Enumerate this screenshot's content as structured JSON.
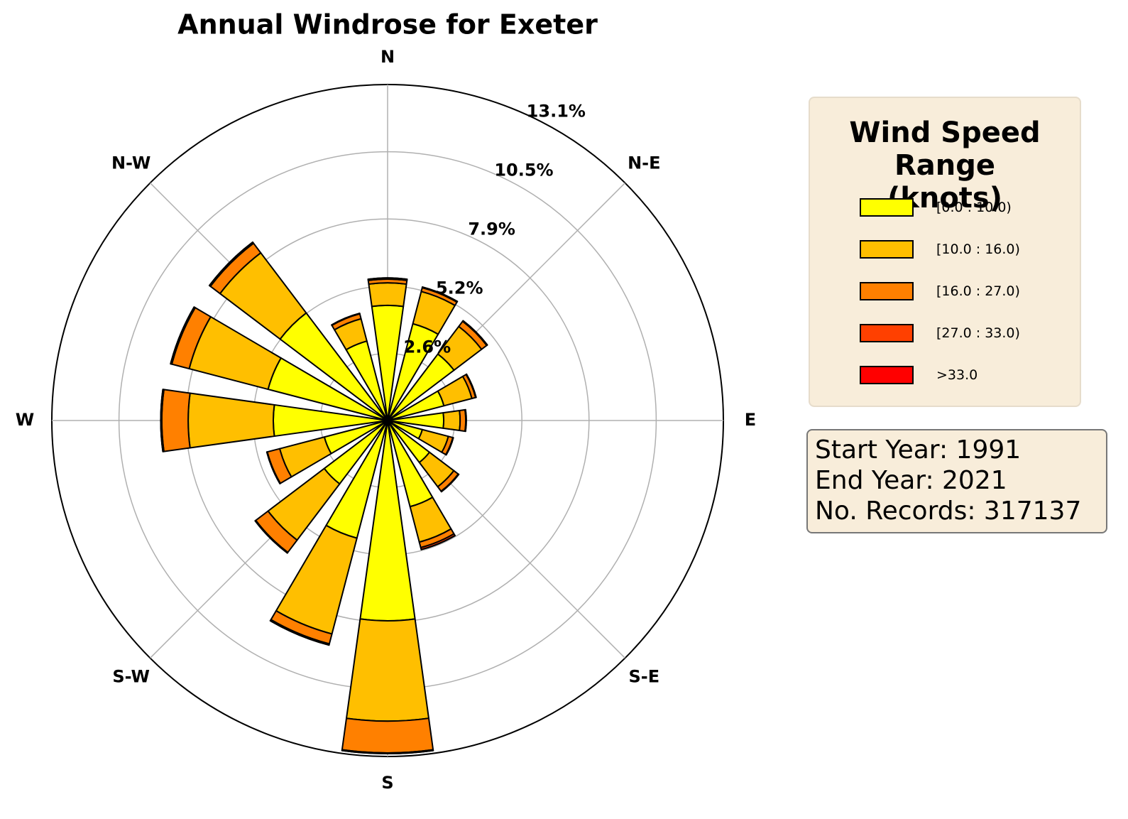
{
  "chart_data": {
    "type": "windrose",
    "title": "Annual Windrose for Exeter",
    "categories": [
      "N",
      null,
      "N-E",
      null,
      "E",
      null,
      "S-E",
      null,
      "S",
      null,
      "S-W",
      null,
      "W",
      null,
      "N-W",
      null
    ],
    "ylim": [
      0,
      13.1
    ],
    "yticks": [
      {
        "value": 2.62,
        "label": "2.6%"
      },
      {
        "value": 5.24,
        "label": "5.2%"
      },
      {
        "value": 7.86,
        "label": "7.9%"
      },
      {
        "value": 10.48,
        "label": "10.5%"
      },
      {
        "value": 13.1,
        "label": "13.1%"
      }
    ],
    "grid": true,
    "legend_title": "Wind Speed Range (knots)",
    "series": [
      {
        "name": "[0.0 : 10.0)",
        "color": "#ffff00",
        "values": [
          4.49,
          3.9,
          3.25,
          2.27,
          2.19,
          1.4,
          2.05,
          3.47,
          7.81,
          4.74,
          3.1,
          2.55,
          4.46,
          4.82,
          5.26,
          3.2
        ]
      },
      {
        "name": "[10.0 : 16.0)",
        "color": "#ffbf00",
        "values": [
          0.88,
          1.3,
          1.35,
          1.13,
          0.64,
          1.05,
          1.19,
          1.43,
          3.91,
          3.86,
          2.75,
          1.8,
          3.32,
          3.18,
          2.94,
          0.9
        ]
      },
      {
        "name": "[16.0 : 27.0)",
        "color": "#ff8000",
        "values": [
          0.14,
          0.15,
          0.25,
          0.15,
          0.22,
          0.18,
          0.22,
          0.22,
          1.24,
          0.4,
          0.6,
          0.5,
          1.03,
          0.7,
          0.47,
          0.2
        ]
      },
      {
        "name": "[27.0 : 33.0)",
        "color": "#ff4000",
        "values": [
          0.05,
          0.03,
          0.03,
          0.02,
          0.02,
          0.02,
          0.02,
          0.08,
          0.03,
          0.05,
          0.03,
          0.02,
          0.04,
          0.05,
          0.05,
          0.02
        ]
      },
      {
        "name": ">33.0",
        "color": "#ff0000",
        "values": [
          0,
          0,
          0,
          0,
          0,
          0,
          0,
          0,
          0,
          0,
          0,
          0,
          0,
          0,
          0,
          0
        ]
      }
    ],
    "annotations": [
      "Start Year: 1991",
      "End Year: 2021",
      "No. Records: 317137"
    ]
  }
}
